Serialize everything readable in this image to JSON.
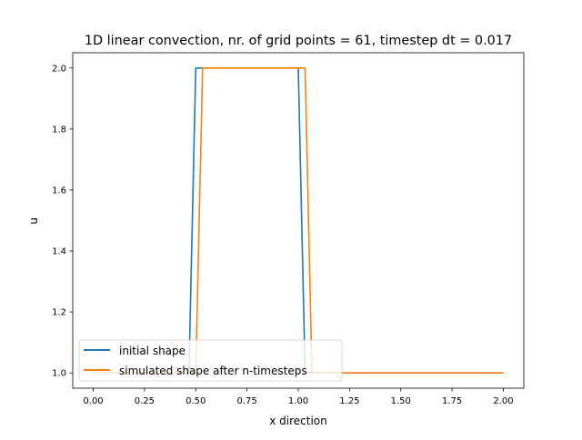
{
  "chart_data": {
    "type": "line",
    "title": "1D linear convection, nr. of grid points = 61, timestep dt = 0.017",
    "xlabel": "x direction",
    "ylabel": "u",
    "xlim": [
      -0.1,
      2.1
    ],
    "ylim": [
      0.95,
      2.05
    ],
    "x_range": [
      0,
      2
    ],
    "n_points": 61,
    "xticks": [
      "0.00",
      "0.25",
      "0.50",
      "0.75",
      "1.00",
      "1.25",
      "1.50",
      "1.75",
      "2.00"
    ],
    "xtick_values": [
      0,
      0.25,
      0.5,
      0.75,
      1.0,
      1.25,
      1.5,
      1.75,
      2.0
    ],
    "yticks": [
      "1.0",
      "1.2",
      "1.4",
      "1.6",
      "1.8",
      "2.0"
    ],
    "ytick_values": [
      1.0,
      1.2,
      1.4,
      1.6,
      1.8,
      2.0
    ],
    "grid": false,
    "legend_position": "lower-left",
    "series": [
      {
        "name": "initial shape",
        "color": "#1f77b4",
        "values": [
          1,
          1,
          1,
          1,
          1,
          1,
          1,
          1,
          1,
          1,
          1,
          1,
          1,
          1,
          1,
          2,
          2,
          2,
          2,
          2,
          2,
          2,
          2,
          2,
          2,
          2,
          2,
          2,
          2,
          2,
          2,
          1,
          1,
          1,
          1,
          1,
          1,
          1,
          1,
          1,
          1,
          1,
          1,
          1,
          1,
          1,
          1,
          1,
          1,
          1,
          1,
          1,
          1,
          1,
          1,
          1,
          1,
          1,
          1,
          1,
          1
        ]
      },
      {
        "name": "simulated shape after n-timesteps",
        "color": "#ff7f0e",
        "values": [
          1,
          1,
          1,
          1,
          1,
          1,
          1,
          1,
          1,
          1,
          1,
          1,
          1,
          1,
          1,
          1,
          2,
          2,
          2,
          2,
          2,
          2,
          2,
          2,
          2,
          2,
          2,
          2,
          2,
          2,
          2,
          2,
          1,
          1,
          1,
          1,
          1,
          1,
          1,
          1,
          1,
          1,
          1,
          1,
          1,
          1,
          1,
          1,
          1,
          1,
          1,
          1,
          1,
          1,
          1,
          1,
          1,
          1,
          1,
          1,
          1
        ]
      }
    ]
  }
}
